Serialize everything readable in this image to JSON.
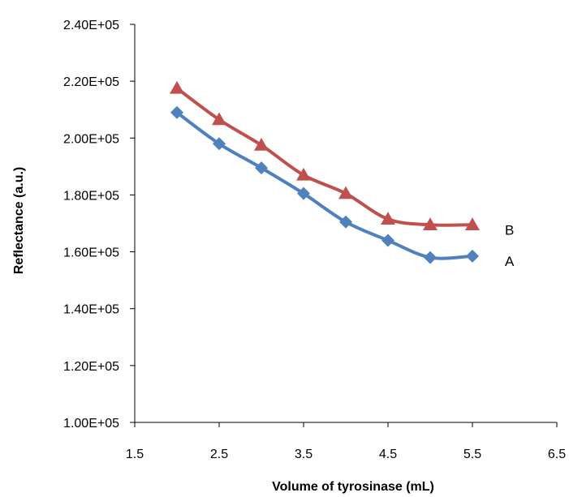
{
  "chart_data": {
    "type": "line",
    "title": "",
    "xlabel": "Volume of tyrosinase (mL)",
    "ylabel": "Reflectance (a.u.)",
    "xlim": [
      1.5,
      6.5
    ],
    "ylim": [
      100000,
      240000
    ],
    "x_ticks": [
      1.5,
      2.5,
      3.5,
      4.5,
      5.5,
      6.5
    ],
    "x_tick_labels": [
      "1.5",
      "2.5",
      "3.5",
      "4.5",
      "5.5",
      "6.5"
    ],
    "y_ticks": [
      100000,
      120000,
      140000,
      160000,
      180000,
      200000,
      220000,
      240000
    ],
    "y_tick_labels": [
      "1.00E+05",
      "1.20E+05",
      "1.40E+05",
      "1.60E+05",
      "1.80E+05",
      "2.00E+05",
      "2.20E+05",
      "2.40E+05"
    ],
    "grid": false,
    "legend": "none",
    "series": [
      {
        "name": "A",
        "color": "#4f81bd",
        "marker": "diamond",
        "x": [
          2.0,
          2.5,
          3.0,
          3.5,
          4.0,
          4.5,
          5.0,
          5.5
        ],
        "y": [
          209000,
          198000,
          189500,
          180500,
          170500,
          164000,
          158000,
          158500
        ]
      },
      {
        "name": "B",
        "color": "#c0504d",
        "marker": "triangle",
        "x": [
          2.0,
          2.5,
          3.0,
          3.5,
          4.0,
          4.5,
          5.0,
          5.5
        ],
        "y": [
          217500,
          206500,
          197500,
          187000,
          180500,
          171500,
          169500,
          169500
        ]
      }
    ]
  }
}
